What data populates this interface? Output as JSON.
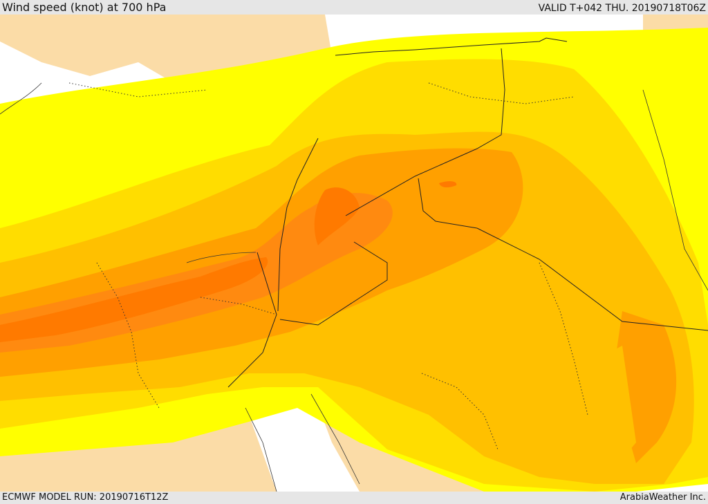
{
  "header": {
    "title": "Wind speed (knot) at 700 hPa",
    "valid": "VALID T+042 THU. 20190718T06Z"
  },
  "footer": {
    "model_run": "ECMWF MODEL RUN: 20190716T12Z",
    "credit": "ArabiaWeather Inc."
  },
  "map": {
    "variable": "wind speed",
    "level": "700 hPa",
    "colors": {
      "sea_white": "#ffffff",
      "land_tan": "#fbdca7",
      "band_yellow": "#ffff00",
      "band_gold": "#ffdd00",
      "band_amber": "#ffc000",
      "band_orange": "#ffa000",
      "band_dark_orange": "#ff8a10",
      "band_core": "#ff7a00",
      "border_line": "#222222"
    }
  }
}
